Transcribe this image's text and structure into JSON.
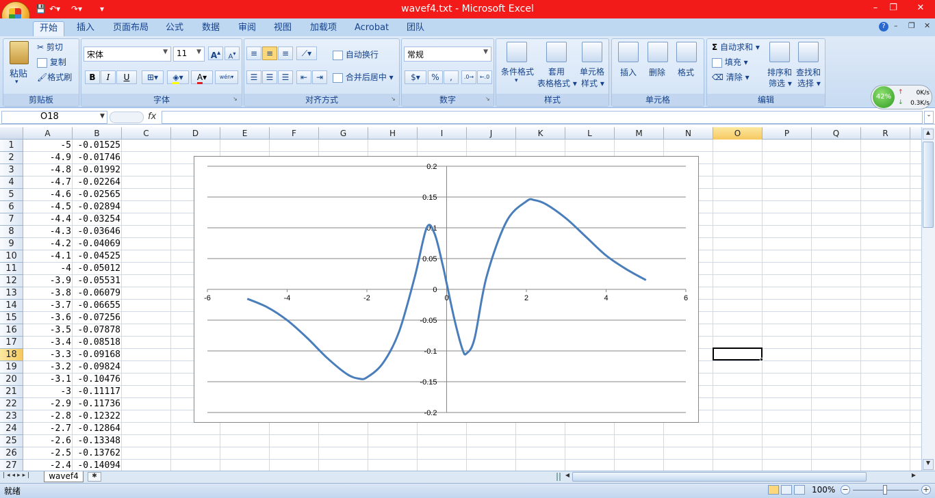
{
  "window": {
    "title": "wavef4.txt - Microsoft Excel",
    "minimize": "–",
    "restore": "❐",
    "close": "✕"
  },
  "ribbon_tabs": [
    "开始",
    "插入",
    "页面布局",
    "公式",
    "数据",
    "审阅",
    "视图",
    "加载项",
    "Acrobat",
    "团队"
  ],
  "clipboard": {
    "label": "剪贴板",
    "paste": "粘贴",
    "cut": "剪切",
    "copy": "复制",
    "format_painter": "格式刷"
  },
  "font": {
    "label": "字体",
    "name": "宋体",
    "size": "11",
    "bold": "B",
    "italic": "I",
    "underline": "U",
    "grow": "A",
    "shrink": "A",
    "wen": "wén"
  },
  "alignment": {
    "label": "对齐方式",
    "wrap": "自动换行",
    "merge": "合并后居中"
  },
  "number": {
    "label": "数字",
    "format": "常规",
    "currency": "$",
    "percent": "%",
    "comma": ","
  },
  "styles": {
    "label": "样式",
    "conditional": "条件格式",
    "table1": "套用",
    "table2": "表格格式",
    "cell_style1": "单元格",
    "cell_style2": "样式"
  },
  "cells": {
    "label": "单元格",
    "insert": "插入",
    "delete": "删除",
    "format": "格式"
  },
  "editing": {
    "label": "编辑",
    "autosum": "自动求和",
    "fill": "填充",
    "clear": "清除",
    "sort1": "排序和",
    "sort2": "筛选",
    "find1": "查找和",
    "find2": "选择"
  },
  "netmon": {
    "percent": "42%",
    "up": "0K/s",
    "down": "0.3K/s"
  },
  "formula_bar": {
    "name_box": "O18",
    "fx": "fx",
    "value": ""
  },
  "columns": [
    "A",
    "B",
    "C",
    "D",
    "E",
    "F",
    "G",
    "H",
    "I",
    "J",
    "K",
    "L",
    "M",
    "N",
    "O",
    "P",
    "Q",
    "R"
  ],
  "rows": [
    {
      "n": "1",
      "a": "-5",
      "b": "-0.01525"
    },
    {
      "n": "2",
      "a": "-4.9",
      "b": "-0.01746"
    },
    {
      "n": "3",
      "a": "-4.8",
      "b": "-0.01992"
    },
    {
      "n": "4",
      "a": "-4.7",
      "b": "-0.02264"
    },
    {
      "n": "5",
      "a": "-4.6",
      "b": "-0.02565"
    },
    {
      "n": "6",
      "a": "-4.5",
      "b": "-0.02894"
    },
    {
      "n": "7",
      "a": "-4.4",
      "b": "-0.03254"
    },
    {
      "n": "8",
      "a": "-4.3",
      "b": "-0.03646"
    },
    {
      "n": "9",
      "a": "-4.2",
      "b": "-0.04069"
    },
    {
      "n": "10",
      "a": "-4.1",
      "b": "-0.04525"
    },
    {
      "n": "11",
      "a": "-4",
      "b": "-0.05012"
    },
    {
      "n": "12",
      "a": "-3.9",
      "b": "-0.05531"
    },
    {
      "n": "13",
      "a": "-3.8",
      "b": "-0.06079"
    },
    {
      "n": "14",
      "a": "-3.7",
      "b": "-0.06655"
    },
    {
      "n": "15",
      "a": "-3.6",
      "b": "-0.07256"
    },
    {
      "n": "16",
      "a": "-3.5",
      "b": "-0.07878"
    },
    {
      "n": "17",
      "a": "-3.4",
      "b": "-0.08518"
    },
    {
      "n": "18",
      "a": "-3.3",
      "b": "-0.09168"
    },
    {
      "n": "19",
      "a": "-3.2",
      "b": "-0.09824"
    },
    {
      "n": "20",
      "a": "-3.1",
      "b": "-0.10476"
    },
    {
      "n": "21",
      "a": "-3",
      "b": "-0.11117"
    },
    {
      "n": "22",
      "a": "-2.9",
      "b": "-0.11736"
    },
    {
      "n": "23",
      "a": "-2.8",
      "b": "-0.12322"
    },
    {
      "n": "24",
      "a": "-2.7",
      "b": "-0.12864"
    },
    {
      "n": "25",
      "a": "-2.6",
      "b": "-0.13348"
    },
    {
      "n": "26",
      "a": "-2.5",
      "b": "-0.13762"
    },
    {
      "n": "27",
      "a": "-2.4",
      "b": "-0.14094"
    }
  ],
  "selected_cell": "O18",
  "sheet_tab": "wavef4",
  "status": {
    "ready": "就绪",
    "zoom": "100%"
  },
  "chart_data": {
    "type": "line",
    "title": "",
    "xlim": [
      -6,
      6
    ],
    "ylim": [
      -0.2,
      0.2
    ],
    "x_ticks": [
      "-6",
      "-4",
      "-2",
      "0",
      "2",
      "4",
      "6"
    ],
    "y_ticks": [
      "0.2",
      "0.15",
      "0.1",
      "0.05",
      "0",
      "-0.05",
      "-0.1",
      "-0.15",
      "-0.2"
    ],
    "gridlines": "horizontal",
    "color": "#4a7ebb",
    "series": [
      {
        "x": [
          -5,
          -4.5,
          -4,
          -3.5,
          -3,
          -2.5,
          -2.2,
          -2,
          -1.6,
          -1.2,
          -0.8,
          -0.5,
          -0.3,
          -0.1,
          0,
          0.2,
          0.4,
          0.5,
          0.7,
          1,
          1.5,
          2,
          2.2,
          2.5,
          3,
          3.5,
          4,
          4.5,
          5
        ],
        "y": [
          -0.01525,
          -0.02894,
          -0.05012,
          -0.07878,
          -0.11117,
          -0.13762,
          -0.145,
          -0.143,
          -0.12,
          -0.07,
          0.02,
          0.1,
          0.09,
          0.04,
          0.01,
          -0.05,
          -0.098,
          -0.104,
          -0.08,
          0.02,
          0.11,
          0.143,
          0.145,
          0.138,
          0.115,
          0.085,
          0.055,
          0.033,
          0.015
        ]
      }
    ]
  }
}
